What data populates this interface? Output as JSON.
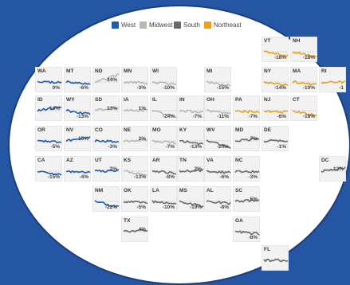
{
  "chart_data": {
    "type": "line",
    "legend": [
      {
        "name": "West",
        "color": "#1f5bb5"
      },
      {
        "name": "Midwest",
        "color": "#b8b8ad"
      },
      {
        "name": "South",
        "color": "#6b6b6b"
      },
      {
        "name": "Northeast",
        "color": "#e8a21c"
      }
    ],
    "legend_placement": "top",
    "series": [
      {
        "state": "VT",
        "region": "Northeast",
        "change": "-16%"
      },
      {
        "state": "NH",
        "region": "Northeast",
        "change": "-18%"
      },
      {
        "state": "WA",
        "region": "West",
        "change": "0%"
      },
      {
        "state": "MT",
        "region": "West",
        "change": "-6%"
      },
      {
        "state": "ND",
        "region": "Midwest",
        "change": "34%"
      },
      {
        "state": "MN",
        "region": "Midwest",
        "change": "-3%"
      },
      {
        "state": "WI",
        "region": "Midwest",
        "change": "-10%"
      },
      {
        "state": "MI",
        "region": "Midwest",
        "change": "-15%"
      },
      {
        "state": "NY",
        "region": "Northeast",
        "change": "-14%"
      },
      {
        "state": "MA",
        "region": "Northeast",
        "change": "-10%"
      },
      {
        "state": "RI",
        "region": "Northeast",
        "change": "-1"
      },
      {
        "state": "ID",
        "region": "West",
        "change": "14%"
      },
      {
        "state": "WY",
        "region": "West",
        "change": "-13%"
      },
      {
        "state": "SD",
        "region": "Midwest",
        "change": "13%"
      },
      {
        "state": "IA",
        "region": "Midwest",
        "change": "1%"
      },
      {
        "state": "IL",
        "region": "Midwest",
        "change": "-24%"
      },
      {
        "state": "IN",
        "region": "Midwest",
        "change": "-7%"
      },
      {
        "state": "OH",
        "region": "Midwest",
        "change": "-11%"
      },
      {
        "state": "PA",
        "region": "Northeast",
        "change": "-7%"
      },
      {
        "state": "NJ",
        "region": "Northeast",
        "change": "-6%"
      },
      {
        "state": "CT",
        "region": "Northeast",
        "change": "-18%"
      },
      {
        "state": "OR",
        "region": "West",
        "change": "-5%"
      },
      {
        "state": "NV",
        "region": "West",
        "change": "15%"
      },
      {
        "state": "CO",
        "region": "West",
        "change": "-3%"
      },
      {
        "state": "NE",
        "region": "Midwest",
        "change": "2%"
      },
      {
        "state": "MO",
        "region": "Midwest",
        "change": "-7%"
      },
      {
        "state": "KY",
        "region": "South",
        "change": "-13%"
      },
      {
        "state": "WV",
        "region": "South",
        "change": "-24%"
      },
      {
        "state": "MD",
        "region": "South",
        "change": "7%"
      },
      {
        "state": "DE",
        "region": "South",
        "change": "-1%"
      },
      {
        "state": "CA",
        "region": "West",
        "change": "-15%"
      },
      {
        "state": "AZ",
        "region": "West",
        "change": "-4%"
      },
      {
        "state": "UT",
        "region": "West",
        "change": "2%"
      },
      {
        "state": "KS",
        "region": "Midwest",
        "change": "-13%"
      },
      {
        "state": "AR",
        "region": "South",
        "change": "-8%"
      },
      {
        "state": "TN",
        "region": "South",
        "change": "2%"
      },
      {
        "state": "VA",
        "region": "South",
        "change": "-6%"
      },
      {
        "state": "NC",
        "region": "South",
        "change": "-3%"
      },
      {
        "state": "DC",
        "region": "South",
        "change": "12%"
      },
      {
        "state": "NM",
        "region": "West",
        "change": "-22%"
      },
      {
        "state": "OK",
        "region": "South",
        "change": "-5%"
      },
      {
        "state": "LA",
        "region": "South",
        "change": "-10%"
      },
      {
        "state": "MS",
        "region": "South",
        "change": "-19%"
      },
      {
        "state": "AL",
        "region": "South",
        "change": "-8%"
      },
      {
        "state": "SC",
        "region": "South",
        "change": "5%"
      },
      {
        "state": "TX",
        "region": "South",
        "change": "4%"
      },
      {
        "state": "GA",
        "region": "South",
        "change": "-8%"
      },
      {
        "state": "FL",
        "region": "South",
        "change": ""
      }
    ]
  }
}
